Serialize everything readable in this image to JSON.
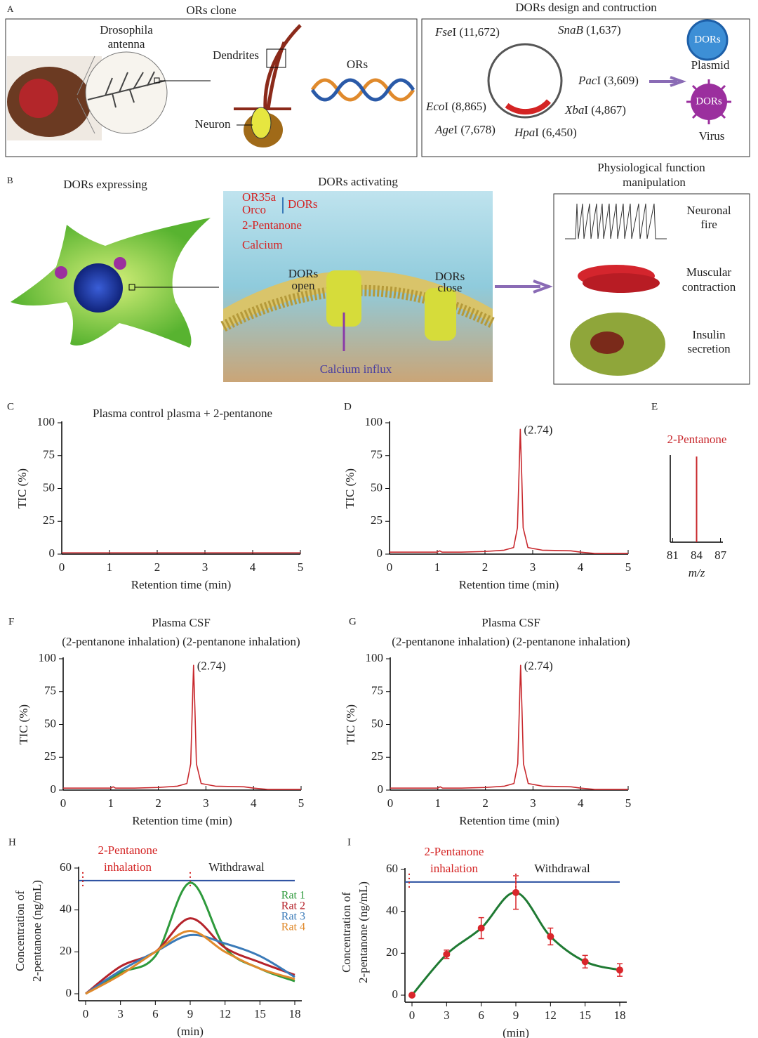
{
  "panel_a": {
    "label": "A",
    "left_title": "ORs clone",
    "antenna": [
      "Drosophila",
      "antenna"
    ],
    "dendrites": "Dendrites",
    "ors": "ORs",
    "neuron": "Neuron",
    "right_title": "DORs design and contruction",
    "sites": [
      {
        "enzyme": "Fse",
        "rest": "I (11,672)"
      },
      {
        "enzyme": "SnaB",
        "rest": " (1,637)"
      },
      {
        "enzyme": "Pac",
        "rest": "I (3,609)"
      },
      {
        "enzyme": "Xba",
        "rest": "I (4,867)"
      },
      {
        "enzyme": "Hpa",
        "rest": "I (6,450)"
      },
      {
        "enzyme": "Age",
        "rest": "I (7,678)"
      },
      {
        "enzyme": "Eco",
        "rest": "I (8,865)"
      }
    ],
    "plasmid_badge": "DORs",
    "plasmid": "Plasmid",
    "virus_badge": "DORs",
    "virus": "Virus"
  },
  "panel_b": {
    "label": "B",
    "left_title": "DORs expressing",
    "middle_title": "DORs activating",
    "right_title": [
      "Physiological function",
      "manipulation"
    ],
    "legend": [
      "OR35a",
      "Orco",
      "2-Pentanone",
      "Calcium"
    ],
    "legend_group": "DORs",
    "open": [
      "DORs",
      "open"
    ],
    "close": [
      "DORs",
      "close"
    ],
    "influx": "Calcium influx",
    "effects": [
      [
        "Neuronal",
        "fire"
      ],
      [
        "Muscular",
        "contraction"
      ],
      [
        "Insulin",
        "secretion"
      ]
    ]
  },
  "chart_data": [
    {
      "type": "line",
      "label": "C",
      "title": "Plasma control plasma + 2-pentanone",
      "x": [
        0,
        5
      ],
      "values": [
        1,
        1
      ],
      "color": "#c8282d",
      "xlim": [
        0,
        5
      ],
      "xticks": [
        0,
        1,
        2,
        3,
        4,
        5
      ],
      "ylim": [
        0,
        100
      ],
      "yticks": [
        0,
        25,
        50,
        75,
        100
      ],
      "xlabel": "Retention time (min)",
      "ylabel": "TIC (%)"
    },
    {
      "type": "line",
      "label": "D",
      "annotation": "(2.74)",
      "x": [
        0,
        0.5,
        1,
        1.05,
        1.1,
        1.5,
        2,
        2.4,
        2.6,
        2.68,
        2.72,
        2.74,
        2.77,
        2.8,
        2.9,
        3.2,
        3.8,
        4,
        4.3,
        5
      ],
      "values": [
        1.5,
        1.5,
        1.5,
        2.5,
        1.5,
        1.5,
        2,
        3,
        5,
        20,
        70,
        95,
        60,
        20,
        5,
        3,
        2.5,
        1.5,
        0.5,
        0.5
      ],
      "color": "#c8282d",
      "xlim": [
        0,
        5
      ],
      "xticks": [
        0,
        1,
        2,
        3,
        4,
        5
      ],
      "ylim": [
        0,
        100
      ],
      "yticks": [
        0,
        25,
        50,
        75,
        100
      ],
      "xlabel": "Retention time (min)",
      "ylabel": "TIC (%)"
    },
    {
      "type": "stem",
      "label": "E",
      "title": "2-Pentanone",
      "x": [
        84
      ],
      "values": [
        100
      ],
      "color": "#c8282d",
      "xlim": [
        80.7,
        87.3
      ],
      "xticks": [
        81,
        84,
        87
      ],
      "ylim": [
        0,
        100
      ],
      "xlabel": "m/z"
    },
    {
      "type": "line",
      "label": "F",
      "title": "Plasma CSF",
      "subtitle": "(2-pentanone inhalation) (2-pentanone inhalation)",
      "annotation": "(2.74)",
      "x": [
        0,
        0.5,
        1,
        1.05,
        1.1,
        1.5,
        2,
        2.4,
        2.6,
        2.68,
        2.72,
        2.74,
        2.77,
        2.8,
        2.9,
        3.2,
        3.8,
        4,
        4.3,
        5
      ],
      "values": [
        1.5,
        1.5,
        1.5,
        2.5,
        1.5,
        1.5,
        2,
        3,
        5,
        20,
        70,
        95,
        60,
        20,
        5,
        3,
        2.5,
        1.5,
        0.5,
        0.5
      ],
      "color": "#c8282d",
      "xlim": [
        0,
        5
      ],
      "xticks": [
        0,
        1,
        2,
        3,
        4,
        5
      ],
      "ylim": [
        0,
        100
      ],
      "yticks": [
        0,
        25,
        50,
        75,
        100
      ],
      "xlabel": "Retention time (min)",
      "ylabel": "TIC (%)"
    },
    {
      "type": "line",
      "label": "G",
      "title": "Plasma CSF",
      "subtitle": "(2-pentanone inhalation) (2-pentanone inhalation)",
      "annotation": "(2.74)",
      "x": [
        0,
        0.5,
        1,
        1.05,
        1.1,
        1.5,
        2,
        2.4,
        2.6,
        2.68,
        2.72,
        2.74,
        2.77,
        2.8,
        2.9,
        3.2,
        3.8,
        4,
        4.3,
        5
      ],
      "values": [
        1.5,
        1.5,
        1.5,
        2.5,
        1.5,
        1.5,
        2,
        3,
        5,
        20,
        70,
        95,
        60,
        20,
        5,
        3,
        2.5,
        1.5,
        0.5,
        0.5
      ],
      "color": "#c8282d",
      "xlim": [
        0,
        5
      ],
      "xticks": [
        0,
        1,
        2,
        3,
        4,
        5
      ],
      "ylim": [
        0,
        100
      ],
      "yticks": [
        0,
        25,
        50,
        75,
        100
      ],
      "xlabel": "Retention time (min)",
      "ylabel": "TIC (%)"
    },
    {
      "type": "line",
      "label": "H",
      "smooth": true,
      "x": [
        0,
        3,
        6,
        9,
        12,
        15,
        18
      ],
      "series": [
        {
          "name": "Rat 1",
          "color": "#2e9a3c",
          "values": [
            0,
            10,
            18,
            53,
            22,
            12,
            6
          ]
        },
        {
          "name": "Rat 2",
          "color": "#b5232b",
          "values": [
            0,
            13,
            20,
            36,
            22,
            15,
            9
          ]
        },
        {
          "name": "Rat 3",
          "color": "#3a7ab8",
          "values": [
            0,
            11,
            20,
            28,
            24,
            18,
            8
          ]
        },
        {
          "name": "Rat 4",
          "color": "#e08a2c",
          "values": [
            0,
            9,
            20,
            30,
            20,
            12,
            7
          ]
        }
      ],
      "xlim": [
        0,
        18
      ],
      "xticks": [
        0,
        3,
        6,
        9,
        12,
        15,
        18
      ],
      "ylim": [
        0,
        60
      ],
      "yticks": [
        0,
        20,
        40,
        60
      ],
      "xlabel": "(min)",
      "ylabel": [
        "Concentration of",
        "2-pentanone (ng/mL)"
      ],
      "annotation_left": [
        "2-Pentanone",
        "inhalation"
      ],
      "annotation_right": "Withdrawal",
      "hline": 54,
      "markers_x": [
        0,
        9
      ]
    },
    {
      "type": "line",
      "label": "I",
      "smooth": true,
      "x": [
        0,
        3,
        6,
        9,
        12,
        15,
        18
      ],
      "values": [
        0,
        19.5,
        32,
        49,
        28,
        16,
        12
      ],
      "errors": [
        0,
        2,
        5,
        8,
        4,
        3,
        3
      ],
      "color": "#1f7a33",
      "marker_color": "#d9262b",
      "xlim": [
        0,
        18
      ],
      "xticks": [
        0,
        3,
        6,
        9,
        12,
        15,
        18
      ],
      "ylim": [
        0,
        60
      ],
      "yticks": [
        0,
        20,
        40,
        60
      ],
      "xlabel": "(min)",
      "ylabel": [
        "Concentration of",
        "2-pentanone (ng/mL)"
      ],
      "annotation_left": [
        "2-Pentanone",
        "inhalation"
      ],
      "annotation_right": "Withdrawal",
      "hline": 54,
      "markers_x": [
        0,
        9
      ]
    }
  ]
}
